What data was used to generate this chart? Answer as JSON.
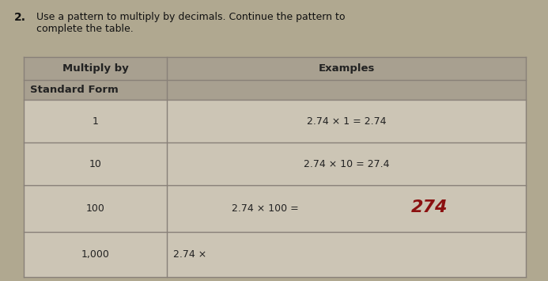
{
  "title_num": "2.",
  "title_text": "Use a pattern to multiply by decimals. Continue the pattern to\ncomplete the table.",
  "col1_header": "Multiply by",
  "col2_header": "Examples",
  "col1_subheader": "Standard Form",
  "rows": [
    {
      "col1": "1",
      "col2": "2.74 × 1 = 2.74"
    },
    {
      "col1": "10",
      "col2": "2.74 × 10 = 27.4"
    },
    {
      "col1": "100",
      "col2_prefix": "2.74 × 100 =",
      "col2_hw": "274"
    },
    {
      "col1": "1,000",
      "col2": "2.74 ×"
    }
  ],
  "bg_color": "#b8b0a0",
  "table_bg": "#ccc5b5",
  "header_bg": "#a8a090",
  "line_color": "#888078",
  "text_color": "#222222",
  "handwritten_color": "#8B1010",
  "title_color": "#111111",
  "fig_bg": "#b0a890"
}
